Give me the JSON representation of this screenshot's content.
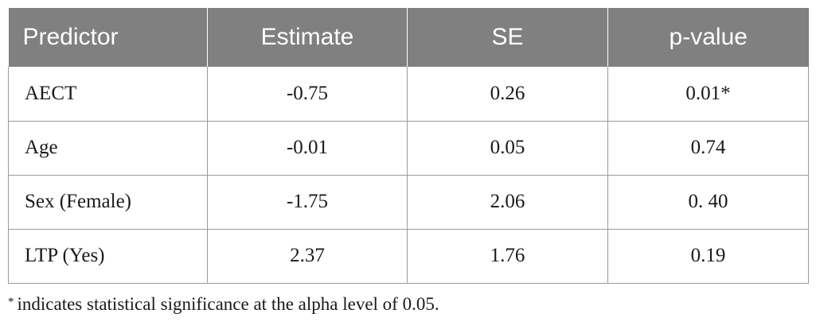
{
  "table": {
    "headers": [
      "Predictor",
      "Estimate",
      "SE",
      "p-value"
    ],
    "rows": [
      [
        "AECT",
        "-0.75",
        "0.26",
        "0.01*"
      ],
      [
        "Age",
        "-0.01",
        "0.05",
        "0.74"
      ],
      [
        "Sex (Female)",
        "-1.75",
        "2.06",
        "0. 40"
      ],
      [
        "LTP (Yes)",
        "2.37",
        "1.76",
        "0.19"
      ]
    ]
  },
  "footnote": {
    "marker": "*",
    "text": "indicates statistical significance at the alpha level of 0.05."
  },
  "colors": {
    "header_background": "#808080",
    "header_text": "#ffffff",
    "border": "#9a9a9a"
  }
}
